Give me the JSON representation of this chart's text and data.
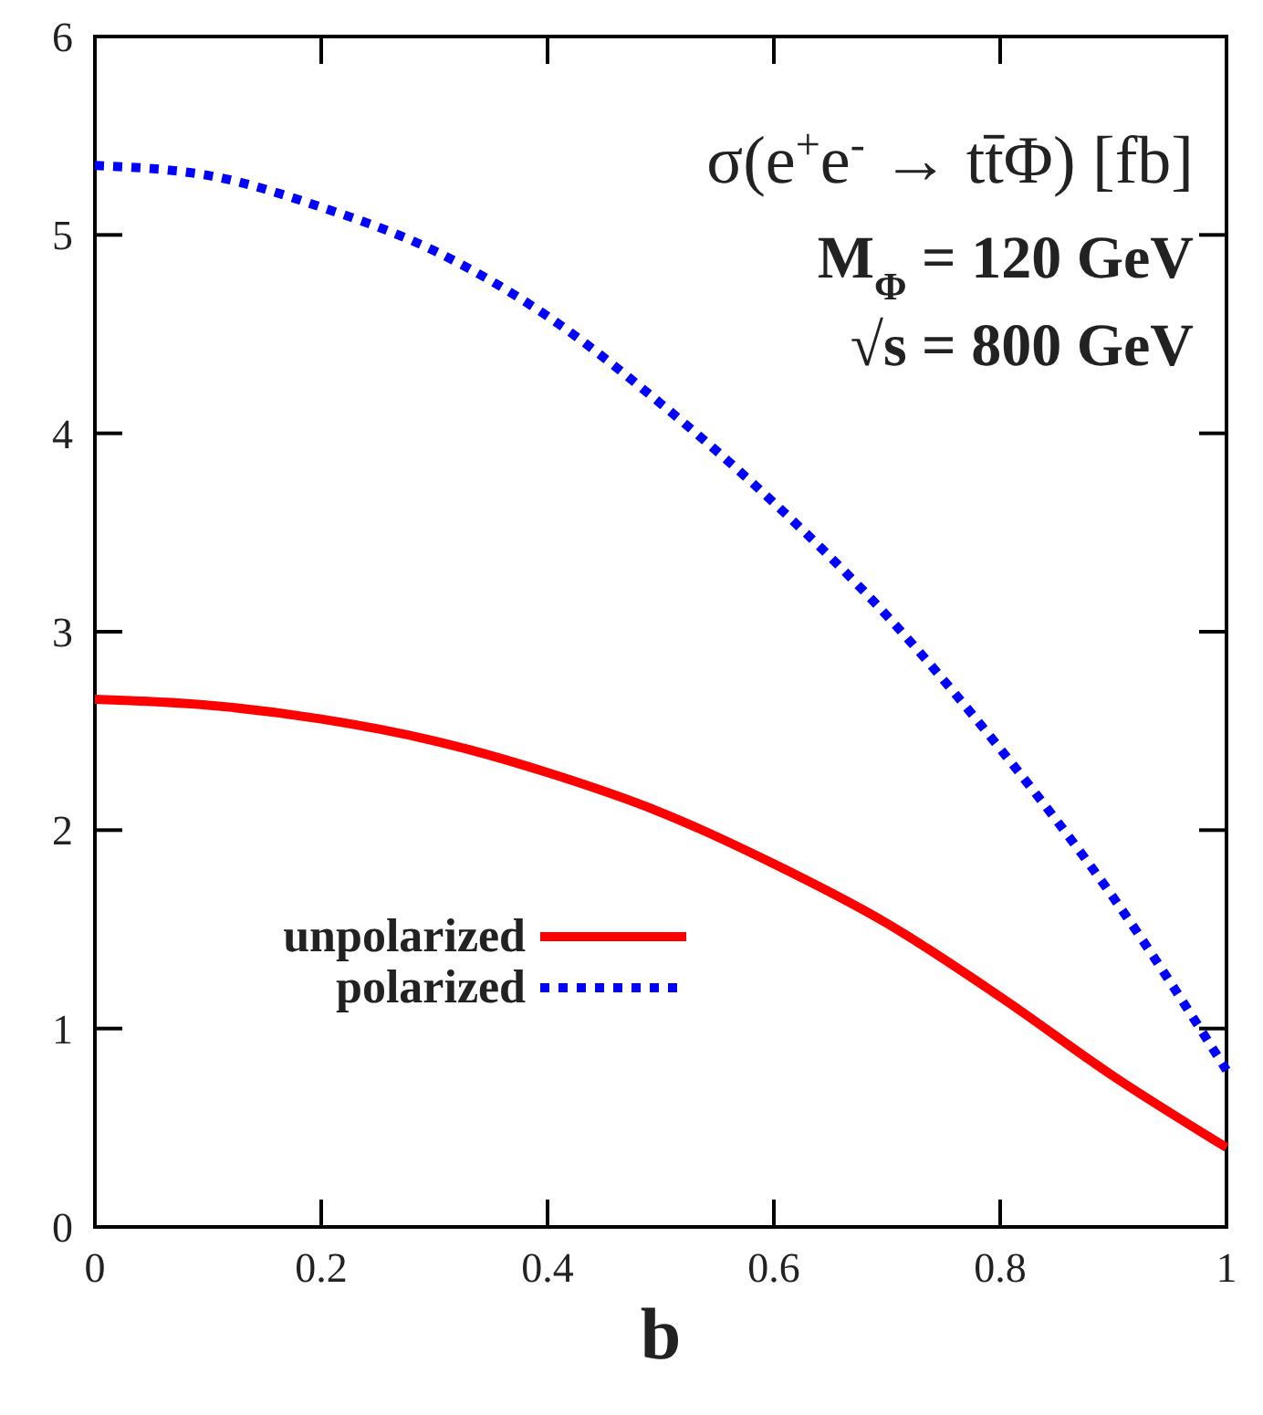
{
  "chart_data": {
    "type": "line",
    "title": "σ(e$^{+}$e$^{-}$ → tt̄Φ) [fb]",
    "xlabel": "b",
    "annotations": [
      "M$_{Φ}$ = 120 GeV",
      "√s = 800 GeV"
    ],
    "x": [
      0,
      0.1,
      0.2,
      0.3,
      0.4,
      0.5,
      0.6,
      0.7,
      0.8,
      0.9,
      1.0
    ],
    "series": [
      {
        "name": "unpolarized",
        "color": "#ff0000",
        "line_style": "solid",
        "values": [
          2.66,
          2.63,
          2.56,
          2.45,
          2.29,
          2.09,
          1.83,
          1.53,
          1.16,
          0.76,
          0.4
        ]
      },
      {
        "name": "polarized",
        "color": "#0000ff",
        "line_style": "dotted",
        "values": [
          5.35,
          5.3,
          5.14,
          4.92,
          4.59,
          4.15,
          3.65,
          3.08,
          2.41,
          1.66,
          0.79
        ]
      }
    ],
    "xlim": [
      0,
      1
    ],
    "ylim": [
      0,
      6
    ],
    "xticks": [
      0,
      0.2,
      0.4,
      0.6,
      0.8,
      1
    ],
    "yticks": [
      0,
      1,
      2,
      3,
      4,
      5,
      6
    ],
    "grid": false,
    "legend": "left",
    "marker": "none"
  }
}
